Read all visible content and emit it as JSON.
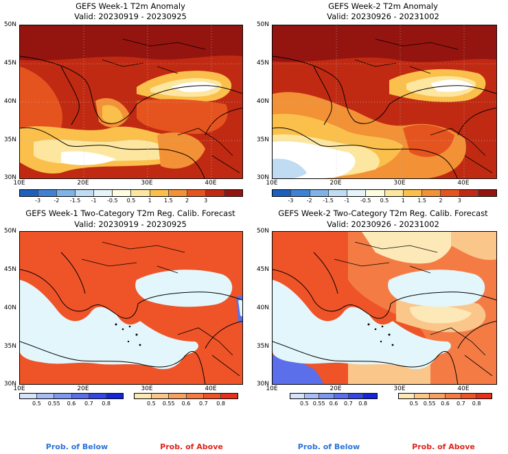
{
  "panels": [
    {
      "title": "GEFS Week-1 T2m Anomaly",
      "valid": "Valid: 20230919 - 20230925"
    },
    {
      "title": "GEFS Week-2 T2m Anomaly",
      "valid": "Valid: 20230926 - 20231002"
    },
    {
      "title": "GEFS Week-1 Two-Category T2m Reg. Calib. Forecast",
      "valid": "Valid: 20230919 - 20230925"
    },
    {
      "title": "GEFS Week-2 Two-Category T2m Reg. Calib. Forecast",
      "valid": "Valid: 20230926 - 20231002"
    }
  ],
  "lat_labels": [
    "50N",
    "45N",
    "40N",
    "35N",
    "30N"
  ],
  "lon_labels": [
    "10E",
    "20E",
    "30E",
    "40E"
  ],
  "anomaly_colorbar": {
    "ticks": [
      "-3",
      "-2",
      "-1.5",
      "-1",
      "-0.5",
      "0.5",
      "1",
      "1.5",
      "2",
      "3"
    ],
    "colors": [
      "#1c5fbd",
      "#3e82d6",
      "#7fb2e6",
      "#bfdcf2",
      "#e6f4fa",
      "#fffde0",
      "#fde7a0",
      "#fbc04c",
      "#f29136",
      "#e5541e",
      "#c12a12",
      "#941410"
    ]
  },
  "prob_below_colorbar": {
    "ticks": [
      "0.5",
      "0.55",
      "0.6",
      "0.7",
      "0.8"
    ],
    "colors": [
      "#d7e3fb",
      "#a8bcf5",
      "#7f98ef",
      "#5a6fe9",
      "#3446e4",
      "#1524d8"
    ]
  },
  "prob_above_colorbar": {
    "ticks": [
      "0.5",
      "0.55",
      "0.6",
      "0.7",
      "0.8"
    ],
    "colors": [
      "#fde8b8",
      "#fbc68a",
      "#f8a064",
      "#f47c44",
      "#ee5428",
      "#e6301c"
    ]
  },
  "legend": {
    "below_label": "Prob. of Below",
    "above_label": "Prob. of Above",
    "below_color": "#2a74d6",
    "above_color": "#e0241a"
  },
  "map_colors": {
    "sea_light": "#e2f6fb",
    "anom_strong": "#c12a12",
    "anom_dark": "#941410",
    "anom_mid": "#e5541e",
    "anom_orange": "#f29136",
    "anom_yellow": "#fbc04c",
    "anom_pale": "#fde7a0",
    "anom_white": "#ffffff",
    "anom_blue": "#bfdcf2",
    "prob_red": "#ee5428",
    "prob_orange": "#f47c44",
    "prob_light": "#fbc68a",
    "prob_pale": "#fde8b8",
    "prob_blue": "#5a6fe9"
  }
}
